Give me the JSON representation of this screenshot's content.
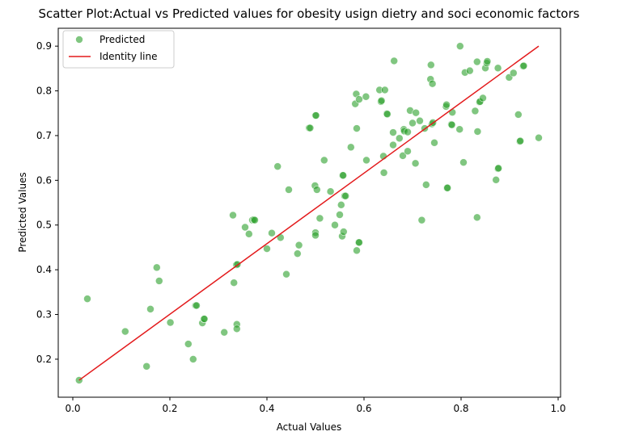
{
  "chart_data": {
    "type": "scatter",
    "title": "Scatter Plot:Actual vs Predicted values for obesity usign dietry and soci economic factors",
    "xlabel": "Actual Values",
    "ylabel": "Predicted Values",
    "xlim": [
      -0.03,
      1.005
    ],
    "ylim": [
      0.115,
      0.94
    ],
    "xticks": [
      0.0,
      0.2,
      0.4,
      0.6,
      0.8,
      1.0
    ],
    "xtick_labels": [
      "0.0",
      "0.2",
      "0.4",
      "0.6",
      "0.8",
      "1.0"
    ],
    "yticks": [
      0.2,
      0.3,
      0.4,
      0.5,
      0.6,
      0.7,
      0.8,
      0.9
    ],
    "ytick_labels": [
      "0.2",
      "0.3",
      "0.4",
      "0.5",
      "0.6",
      "0.7",
      "0.8",
      "0.9"
    ],
    "grid": false,
    "legend_position": "top-left",
    "series": [
      {
        "name": "Predicted",
        "kind": "scatter",
        "color": "#2ca02c",
        "points": [
          [
            0.013,
            0.153
          ],
          [
            0.03,
            0.335
          ],
          [
            0.108,
            0.262
          ],
          [
            0.152,
            0.184
          ],
          [
            0.16,
            0.312
          ],
          [
            0.173,
            0.405
          ],
          [
            0.178,
            0.375
          ],
          [
            0.201,
            0.282
          ],
          [
            0.238,
            0.234
          ],
          [
            0.248,
            0.2
          ],
          [
            0.253,
            0.32
          ],
          [
            0.255,
            0.32
          ],
          [
            0.267,
            0.281
          ],
          [
            0.27,
            0.29
          ],
          [
            0.271,
            0.29
          ],
          [
            0.312,
            0.26
          ],
          [
            0.33,
            0.522
          ],
          [
            0.332,
            0.371
          ],
          [
            0.337,
            0.411
          ],
          [
            0.338,
            0.278
          ],
          [
            0.338,
            0.268
          ],
          [
            0.339,
            0.412
          ],
          [
            0.355,
            0.495
          ],
          [
            0.363,
            0.48
          ],
          [
            0.37,
            0.511
          ],
          [
            0.373,
            0.512
          ],
          [
            0.375,
            0.511
          ],
          [
            0.4,
            0.447
          ],
          [
            0.41,
            0.482
          ],
          [
            0.422,
            0.631
          ],
          [
            0.428,
            0.472
          ],
          [
            0.44,
            0.39
          ],
          [
            0.445,
            0.579
          ],
          [
            0.463,
            0.436
          ],
          [
            0.466,
            0.455
          ],
          [
            0.487,
            0.717
          ],
          [
            0.489,
            0.717
          ],
          [
            0.499,
            0.588
          ],
          [
            0.5,
            0.483
          ],
          [
            0.5,
            0.477
          ],
          [
            0.5,
            0.745
          ],
          [
            0.501,
            0.745
          ],
          [
            0.503,
            0.579
          ],
          [
            0.509,
            0.515
          ],
          [
            0.518,
            0.645
          ],
          [
            0.531,
            0.575
          ],
          [
            0.54,
            0.5
          ],
          [
            0.55,
            0.523
          ],
          [
            0.553,
            0.545
          ],
          [
            0.555,
            0.475
          ],
          [
            0.556,
            0.611
          ],
          [
            0.557,
            0.611
          ],
          [
            0.558,
            0.485
          ],
          [
            0.56,
            0.565
          ],
          [
            0.562,
            0.565
          ],
          [
            0.573,
            0.674
          ],
          [
            0.582,
            0.771
          ],
          [
            0.584,
            0.793
          ],
          [
            0.585,
            0.716
          ],
          [
            0.585,
            0.443
          ],
          [
            0.589,
            0.461
          ],
          [
            0.59,
            0.461
          ],
          [
            0.59,
            0.781
          ],
          [
            0.604,
            0.787
          ],
          [
            0.605,
            0.645
          ],
          [
            0.632,
            0.802
          ],
          [
            0.635,
            0.776
          ],
          [
            0.636,
            0.778
          ],
          [
            0.64,
            0.654
          ],
          [
            0.641,
            0.617
          ],
          [
            0.643,
            0.802
          ],
          [
            0.647,
            0.749
          ],
          [
            0.648,
            0.748
          ],
          [
            0.66,
            0.707
          ],
          [
            0.66,
            0.679
          ],
          [
            0.662,
            0.867
          ],
          [
            0.673,
            0.694
          ],
          [
            0.68,
            0.655
          ],
          [
            0.682,
            0.714
          ],
          [
            0.683,
            0.71
          ],
          [
            0.69,
            0.665
          ],
          [
            0.69,
            0.708
          ],
          [
            0.695,
            0.756
          ],
          [
            0.7,
            0.728
          ],
          [
            0.706,
            0.638
          ],
          [
            0.707,
            0.751
          ],
          [
            0.715,
            0.733
          ],
          [
            0.719,
            0.511
          ],
          [
            0.725,
            0.716
          ],
          [
            0.728,
            0.59
          ],
          [
            0.737,
            0.826
          ],
          [
            0.738,
            0.858
          ],
          [
            0.74,
            0.726
          ],
          [
            0.741,
            0.816
          ],
          [
            0.742,
            0.729
          ],
          [
            0.745,
            0.684
          ],
          [
            0.769,
            0.765
          ],
          [
            0.77,
            0.769
          ],
          [
            0.771,
            0.583
          ],
          [
            0.772,
            0.583
          ],
          [
            0.78,
            0.725
          ],
          [
            0.781,
            0.724
          ],
          [
            0.782,
            0.752
          ],
          [
            0.797,
            0.714
          ],
          [
            0.798,
            0.9
          ],
          [
            0.805,
            0.64
          ],
          [
            0.808,
            0.841
          ],
          [
            0.818,
            0.845
          ],
          [
            0.829,
            0.755
          ],
          [
            0.833,
            0.865
          ],
          [
            0.833,
            0.517
          ],
          [
            0.834,
            0.709
          ],
          [
            0.838,
            0.775
          ],
          [
            0.839,
            0.776
          ],
          [
            0.845,
            0.784
          ],
          [
            0.85,
            0.851
          ],
          [
            0.853,
            0.862
          ],
          [
            0.854,
            0.866
          ],
          [
            0.872,
            0.601
          ],
          [
            0.876,
            0.626
          ],
          [
            0.877,
            0.627
          ],
          [
            0.876,
            0.851
          ],
          [
            0.899,
            0.83
          ],
          [
            0.908,
            0.84
          ],
          [
            0.918,
            0.747
          ],
          [
            0.921,
            0.687
          ],
          [
            0.922,
            0.688
          ],
          [
            0.928,
            0.855
          ],
          [
            0.929,
            0.856
          ],
          [
            0.96,
            0.695
          ]
        ]
      },
      {
        "name": "Identity line",
        "kind": "line",
        "color": "#e31a1c",
        "points": [
          [
            0.013,
            0.153
          ],
          [
            0.96,
            0.9
          ]
        ]
      }
    ]
  }
}
